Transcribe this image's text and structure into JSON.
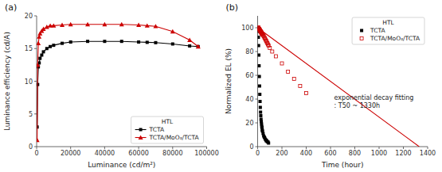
{
  "chart_data": [
    {
      "type": "line",
      "title": "(a)",
      "x_label": "Luminance (cd/m²)",
      "y_label": "Luminance efficiency (cd/A)",
      "xlim": [
        0,
        100000
      ],
      "ylim": [
        0,
        20
      ],
      "xticks": [
        0,
        20000,
        40000,
        60000,
        80000,
        100000
      ],
      "yticks": [
        0,
        5,
        10,
        15,
        20
      ],
      "x": [
        300,
        600,
        1000,
        1500,
        2000,
        3000,
        4000,
        6000,
        8000,
        10000,
        15000,
        20000,
        30000,
        40000,
        50000,
        60000,
        65000,
        70000,
        80000,
        90000,
        95000
      ],
      "series": [
        {
          "name": "TCTA",
          "color": "#000000",
          "marker": "square",
          "values": [
            3.0,
            9.5,
            12.2,
            12.8,
            13.5,
            14.0,
            14.5,
            15.0,
            15.3,
            15.5,
            15.8,
            16.0,
            16.1,
            16.1,
            16.1,
            16.0,
            15.95,
            15.9,
            15.7,
            15.4,
            15.3
          ]
        },
        {
          "name": "TCTA/MoO₃/TCTA",
          "color": "#cc0000",
          "marker": "triangle",
          "values": [
            1.0,
            12.5,
            15.8,
            16.8,
            17.3,
            17.7,
            18.0,
            18.3,
            18.5,
            18.5,
            18.6,
            18.7,
            18.7,
            18.7,
            18.7,
            18.6,
            18.5,
            18.4,
            17.6,
            16.3,
            15.3
          ]
        }
      ],
      "legend": "lower right",
      "legend_title": "HTL"
    },
    {
      "type": "scatter",
      "title": "(b)",
      "x_label": "Time (hour)",
      "y_label": "Normalized EL (%)",
      "xlim": [
        0,
        1400
      ],
      "ylim": [
        0,
        110
      ],
      "xticks": [
        0,
        200,
        400,
        600,
        800,
        1000,
        1200,
        1400
      ],
      "yticks": [
        0,
        20,
        40,
        60,
        80,
        100
      ],
      "series": [
        {
          "name": "TCTA",
          "color": "#000000",
          "marker": "square",
          "x": [
            2,
            4,
            6,
            8,
            10,
            12,
            14,
            16,
            18,
            20,
            22,
            24,
            26,
            28,
            30,
            32,
            34,
            36,
            38,
            40,
            45,
            50,
            55,
            60,
            65,
            70,
            75,
            80,
            85,
            90
          ],
          "values": [
            100,
            97,
            92,
            85,
            77,
            68,
            59,
            51,
            44,
            38,
            33,
            29,
            26,
            23,
            21,
            19,
            17,
            16,
            14,
            13,
            11,
            9,
            8,
            7,
            6,
            5,
            5,
            4,
            4,
            3
          ]
        },
        {
          "name": "TCTA/MoO₃/TCTA",
          "color": "#cc0000",
          "marker": "open-square",
          "x": [
            2,
            4,
            6,
            8,
            10,
            12,
            14,
            16,
            18,
            20,
            22,
            24,
            26,
            28,
            30,
            32,
            34,
            36,
            38,
            40,
            45,
            50,
            55,
            60,
            65,
            70,
            75,
            80,
            85,
            90,
            100,
            120,
            150,
            200,
            250,
            300,
            350,
            400
          ],
          "values": [
            100,
            100,
            100,
            100,
            99,
            99,
            99,
            98,
            98,
            98,
            97,
            97,
            97,
            96,
            96,
            96,
            95,
            95,
            95,
            94,
            94,
            93,
            92,
            91,
            90,
            89,
            88,
            87,
            86,
            85,
            83,
            80,
            76,
            70,
            63,
            57,
            51,
            45
          ]
        },
        {
          "type": "line",
          "color": "#cc0000",
          "x": [
            0,
            1330
          ],
          "values": [
            100,
            0
          ]
        }
      ],
      "annotations": [
        {
          "text": "exponential decay fitting\n: T50 ~ 1330h",
          "x": 630,
          "y": 38
        }
      ],
      "legend": "upper right",
      "legend_title": "HTL"
    }
  ]
}
